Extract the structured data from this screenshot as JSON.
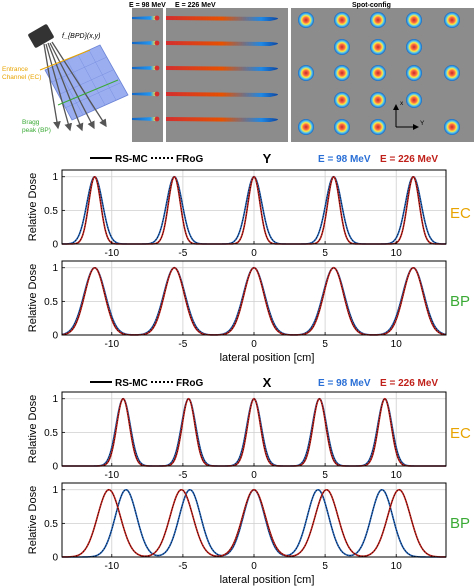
{
  "colors": {
    "rsmc": "#000000",
    "frog_low": "#1f5fb4",
    "frog_high": "#c0201a",
    "ec_label": "#e8a400",
    "bp_label": "#3aaa35",
    "energy_low": "#2a6fd6",
    "energy_high": "#c0201a"
  },
  "schematic": {
    "formula": "f_{BPD}(x,y)",
    "ec_label_line1": "Entrance",
    "ec_label_line2": "Channel (EC)",
    "bp_label_line1": "Bragg",
    "bp_label_line2": "peak (BP)"
  },
  "header_images": {
    "energy_low_label": "E = 98 MeV",
    "energy_high_label": "E = 226 MeV",
    "spot_config_label": "Spot-config",
    "axis_x": "x",
    "axis_y": "Y"
  },
  "legend": {
    "rsmc": "RS-MC",
    "frog": "FRoG",
    "energy_low": "E = 98 MeV",
    "energy_high": "E = 226 MeV"
  },
  "groups": [
    {
      "direction": "Y",
      "xlabel": "lateral position [cm]"
    },
    {
      "direction": "X",
      "xlabel": "lateral position [cm]"
    }
  ],
  "panel_row_labels": [
    "EC",
    "BP",
    "EC",
    "BP"
  ],
  "chart_data": [
    {
      "type": "line",
      "title": "Y",
      "row_label": "EC",
      "ylabel": "Relative Dose",
      "xlabel": "",
      "xlim": [
        -13.5,
        13.5
      ],
      "ylim": [
        0,
        1.1
      ],
      "xticks": [
        -10,
        -5,
        0,
        5,
        10
      ],
      "yticks": [
        0,
        0.5,
        1
      ],
      "grid": true,
      "peak_sigma_cm": {
        "98 MeV": 0.55,
        "226 MeV": 0.42
      },
      "series": [
        {
          "name": "E = 98 MeV",
          "peaks": [
            -11.2,
            -5.6,
            0,
            5.6,
            11.2
          ]
        },
        {
          "name": "E = 226 MeV",
          "peaks": [
            -11.2,
            -5.6,
            0,
            5.6,
            11.2
          ]
        }
      ]
    },
    {
      "type": "line",
      "title": "",
      "row_label": "BP",
      "ylabel": "Relative Dose",
      "xlabel": "lateral position [cm]",
      "xlim": [
        -13.5,
        13.5
      ],
      "ylim": [
        0,
        1.1
      ],
      "xticks": [
        -10,
        -5,
        0,
        5,
        10
      ],
      "yticks": [
        0,
        0.5,
        1
      ],
      "grid": true,
      "peak_sigma_cm": {
        "98 MeV": 0.75,
        "226 MeV": 0.7
      },
      "series": [
        {
          "name": "E = 98 MeV",
          "peaks": [
            -11.2,
            -5.6,
            0,
            5.6,
            11.2
          ]
        },
        {
          "name": "E = 226 MeV",
          "peaks": [
            -11.2,
            -5.6,
            0,
            5.6,
            11.2
          ]
        }
      ]
    },
    {
      "type": "line",
      "title": "X",
      "row_label": "EC",
      "ylabel": "Relative Dose",
      "xlabel": "",
      "xlim": [
        -13.5,
        13.5
      ],
      "ylim": [
        0,
        1.1
      ],
      "xticks": [
        -10,
        -5,
        0,
        5,
        10
      ],
      "yticks": [
        0,
        0.5,
        1
      ],
      "grid": true,
      "peak_sigma_cm": {
        "98 MeV": 0.5,
        "226 MeV": 0.45
      },
      "series": [
        {
          "name": "E = 98 MeV",
          "peaks": [
            -9.2,
            -4.6,
            0,
            4.6,
            9.2
          ]
        },
        {
          "name": "E = 226 MeV",
          "peaks": [
            -9.2,
            -4.6,
            0,
            4.6,
            9.2
          ]
        }
      ]
    },
    {
      "type": "line",
      "title": "",
      "row_label": "BP",
      "ylabel": "Relative Dose",
      "xlabel": "lateral position [cm]",
      "xlim": [
        -13.5,
        13.5
      ],
      "ylim": [
        0,
        1.1
      ],
      "xticks": [
        -10,
        -5,
        0,
        5,
        10
      ],
      "yticks": [
        0,
        0.5,
        1
      ],
      "grid": true,
      "peak_sigma_cm": {
        "98 MeV": 0.75,
        "226 MeV": 0.8
      },
      "series": [
        {
          "name": "E = 98 MeV",
          "peaks": [
            -9.0,
            -4.5,
            0,
            4.5,
            9.0
          ]
        },
        {
          "name": "E = 226 MeV",
          "peaks": [
            -10.2,
            -5.1,
            0,
            5.1,
            10.2
          ]
        }
      ]
    }
  ]
}
